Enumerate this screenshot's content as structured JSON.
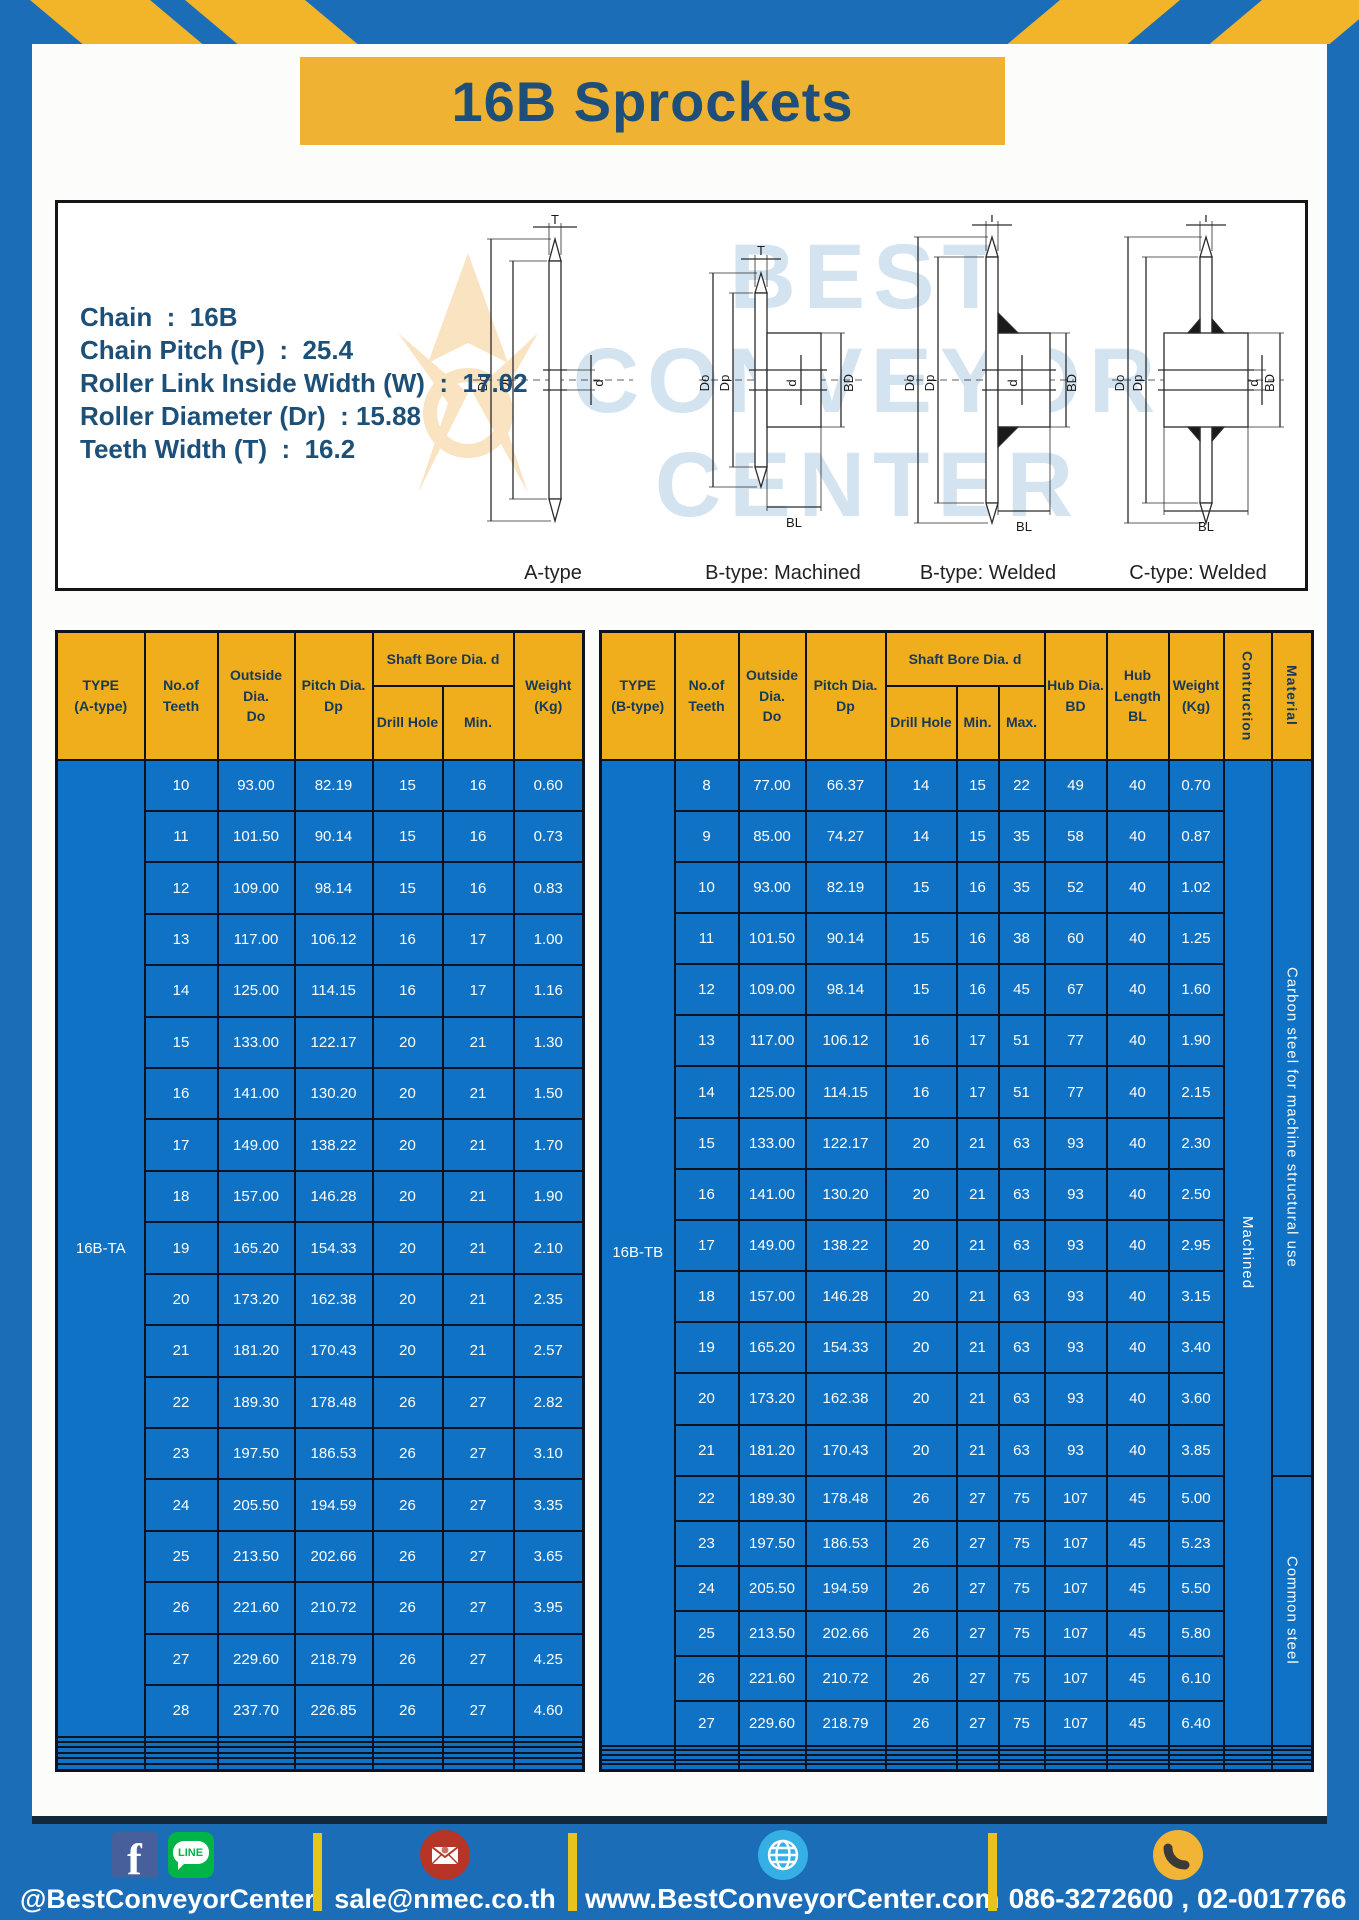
{
  "page_title": "16B Sprockets",
  "specs": {
    "lines": [
      "Chain  :  16B",
      "Chain Pitch (P)  :  25.4",
      "Roller Link Inside Width (W)  :  17.02",
      "Roller Diameter (Dr)  : 15.88",
      "Teeth Width (T)  :  16.2"
    ]
  },
  "diagram": {
    "watermark": {
      "line1": "BEST",
      "line2": "CONVEYOR",
      "line3": "CENTER"
    },
    "dims": {
      "t": "T",
      "outside": "Do",
      "pitch": "Dp",
      "bore": "d",
      "hub": "BD",
      "hub_length": "BL"
    },
    "captions": {
      "a": "A-type",
      "b_machined": "B-type: Machined",
      "b_welded": "B-type: Welded",
      "c_welded": "C-type: Welded"
    }
  },
  "tables": {
    "left": {
      "type_label": "16B-TA",
      "headers": {
        "type": "TYPE\n(A-type)",
        "teeth": "No.of\nTeeth",
        "outside": "Outside\nDia.\nDo",
        "pitch": "Pitch Dia.\nDp",
        "shaft": "Shaft Bore Dia. d",
        "drill": "Drill Hole",
        "min": "Min.",
        "weight": "Weight\n(Kg)"
      },
      "rows": [
        [
          "10",
          "93.00",
          "82.19",
          "15",
          "16",
          "0.60"
        ],
        [
          "11",
          "101.50",
          "90.14",
          "15",
          "16",
          "0.73"
        ],
        [
          "12",
          "109.00",
          "98.14",
          "15",
          "16",
          "0.83"
        ],
        [
          "13",
          "117.00",
          "106.12",
          "16",
          "17",
          "1.00"
        ],
        [
          "14",
          "125.00",
          "114.15",
          "16",
          "17",
          "1.16"
        ],
        [
          "15",
          "133.00",
          "122.17",
          "20",
          "21",
          "1.30"
        ],
        [
          "16",
          "141.00",
          "130.20",
          "20",
          "21",
          "1.50"
        ],
        [
          "17",
          "149.00",
          "138.22",
          "20",
          "21",
          "1.70"
        ],
        [
          "18",
          "157.00",
          "146.28",
          "20",
          "21",
          "1.90"
        ],
        [
          "19",
          "165.20",
          "154.33",
          "20",
          "21",
          "2.10"
        ],
        [
          "20",
          "173.20",
          "162.38",
          "20",
          "21",
          "2.35"
        ],
        [
          "21",
          "181.20",
          "170.43",
          "20",
          "21",
          "2.57"
        ],
        [
          "22",
          "189.30",
          "178.48",
          "26",
          "27",
          "2.82"
        ],
        [
          "23",
          "197.50",
          "186.53",
          "26",
          "27",
          "3.10"
        ],
        [
          "24",
          "205.50",
          "194.59",
          "26",
          "27",
          "3.35"
        ],
        [
          "25",
          "213.50",
          "202.66",
          "26",
          "27",
          "3.65"
        ],
        [
          "26",
          "221.60",
          "210.72",
          "26",
          "27",
          "3.95"
        ],
        [
          "27",
          "229.60",
          "218.79",
          "26",
          "27",
          "4.25"
        ],
        [
          "28",
          "237.70",
          "226.85",
          "26",
          "27",
          "4.60"
        ]
      ],
      "empty_rows": 6
    },
    "right": {
      "type_label": "16B-TB",
      "headers": {
        "type": "TYPE\n(B-type)",
        "teeth": "No.of\nTeeth",
        "outside": "Outside\nDia.\nDo",
        "pitch": "Pitch Dia.\nDp",
        "shaft": "Shaft Bore Dia. d",
        "drill": "Drill Hole",
        "min": "Min.",
        "max": "Max.",
        "hub_dia": "Hub Dia.\nBD",
        "hub_len": "Hub\nLength\nBL",
        "weight": "Weight\n(Kg)",
        "construction": "Contruction",
        "material": "Material"
      },
      "construction": "Machined",
      "materials": [
        {
          "label": "Carbon steel for machine structural use",
          "start": 0,
          "rows": 14
        },
        {
          "label": "Common steel",
          "start": 14,
          "rows": 6
        }
      ],
      "rows": [
        [
          "8",
          "77.00",
          "66.37",
          "14",
          "15",
          "22",
          "49",
          "40",
          "0.70"
        ],
        [
          "9",
          "85.00",
          "74.27",
          "14",
          "15",
          "35",
          "58",
          "40",
          "0.87"
        ],
        [
          "10",
          "93.00",
          "82.19",
          "15",
          "16",
          "35",
          "52",
          "40",
          "1.02"
        ],
        [
          "11",
          "101.50",
          "90.14",
          "15",
          "16",
          "38",
          "60",
          "40",
          "1.25"
        ],
        [
          "12",
          "109.00",
          "98.14",
          "15",
          "16",
          "45",
          "67",
          "40",
          "1.60"
        ],
        [
          "13",
          "117.00",
          "106.12",
          "16",
          "17",
          "51",
          "77",
          "40",
          "1.90"
        ],
        [
          "14",
          "125.00",
          "114.15",
          "16",
          "17",
          "51",
          "77",
          "40",
          "2.15"
        ],
        [
          "15",
          "133.00",
          "122.17",
          "20",
          "21",
          "63",
          "93",
          "40",
          "2.30"
        ],
        [
          "16",
          "141.00",
          "130.20",
          "20",
          "21",
          "63",
          "93",
          "40",
          "2.50"
        ],
        [
          "17",
          "149.00",
          "138.22",
          "20",
          "21",
          "63",
          "93",
          "40",
          "2.95"
        ],
        [
          "18",
          "157.00",
          "146.28",
          "20",
          "21",
          "63",
          "93",
          "40",
          "3.15"
        ],
        [
          "19",
          "165.20",
          "154.33",
          "20",
          "21",
          "63",
          "93",
          "40",
          "3.40"
        ],
        [
          "20",
          "173.20",
          "162.38",
          "20",
          "21",
          "63",
          "93",
          "40",
          "3.60"
        ],
        [
          "21",
          "181.20",
          "170.43",
          "20",
          "21",
          "63",
          "93",
          "40",
          "3.85"
        ],
        [
          "22",
          "189.30",
          "178.48",
          "26",
          "27",
          "75",
          "107",
          "45",
          "5.00"
        ],
        [
          "23",
          "197.50",
          "186.53",
          "26",
          "27",
          "75",
          "107",
          "45",
          "5.23"
        ],
        [
          "24",
          "205.50",
          "194.59",
          "26",
          "27",
          "75",
          "107",
          "45",
          "5.50"
        ],
        [
          "25",
          "213.50",
          "202.66",
          "26",
          "27",
          "75",
          "107",
          "45",
          "5.80"
        ],
        [
          "26",
          "221.60",
          "210.72",
          "26",
          "27",
          "75",
          "107",
          "45",
          "6.10"
        ],
        [
          "27",
          "229.60",
          "218.79",
          "26",
          "27",
          "75",
          "107",
          "45",
          "6.40"
        ]
      ],
      "empty_rows": 5
    }
  },
  "footer": {
    "facebook_icon_letter": "f",
    "line_icon_text": "LINE",
    "facebook_line_label": "@BestConveyorCenter",
    "email": "sale@nmec.co.th",
    "website": "www.BestConveyorCenter.com",
    "phones": "086-3272600 , 02-0017766"
  },
  "colors": {
    "frame_blue": "#1b6db7",
    "hazard_yellow": "#f2b52a",
    "header_yellow": "#f0ae1c",
    "table_blue": "#0f72c4",
    "ink_navy": "#1d5078"
  }
}
